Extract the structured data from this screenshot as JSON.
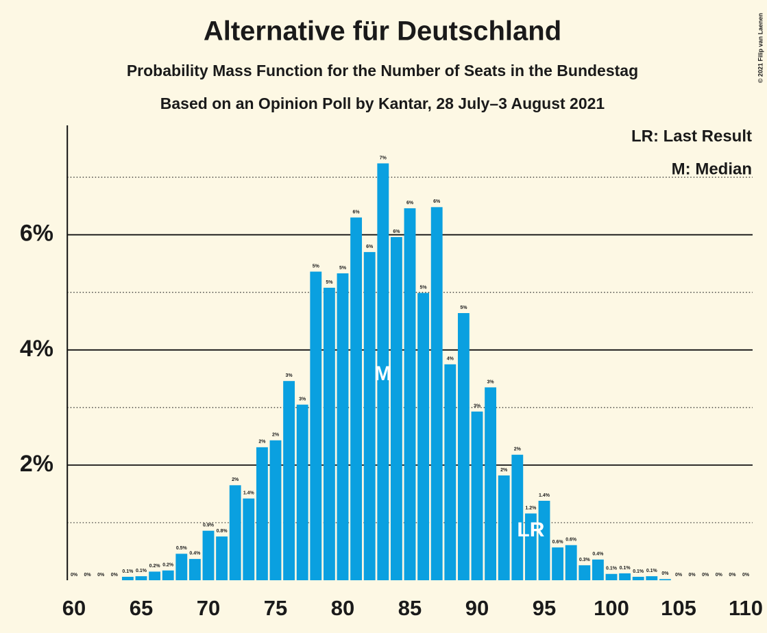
{
  "chart_data": {
    "type": "bar",
    "title": "Alternative für Deutschland",
    "subtitle": "Probability Mass Function for the Number of Seats in the Bundestag",
    "subtitle2": "Based on an Opinion Poll by Kantar, 28 July–3 August 2021",
    "copyright": "© 2021 Filip van Laenen",
    "legend": [
      "LR: Last Result",
      "M: Median"
    ],
    "color": "#0aa0e0",
    "x": [
      60,
      61,
      62,
      63,
      64,
      65,
      66,
      67,
      68,
      69,
      70,
      71,
      72,
      73,
      74,
      75,
      76,
      77,
      78,
      79,
      80,
      81,
      82,
      83,
      84,
      85,
      86,
      87,
      88,
      89,
      90,
      91,
      92,
      93,
      94,
      95,
      96,
      97,
      98,
      99,
      100,
      101,
      102,
      103,
      104,
      105,
      106,
      107,
      108,
      109,
      110
    ],
    "values": [
      0,
      0,
      0,
      0,
      0.06,
      0.07,
      0.15,
      0.17,
      0.46,
      0.37,
      0.86,
      0.76,
      1.65,
      1.42,
      2.31,
      2.43,
      3.46,
      3.05,
      5.36,
      5.08,
      5.33,
      6.3,
      5.7,
      7.24,
      5.96,
      6.46,
      4.99,
      6.48,
      3.75,
      4.64,
      2.93,
      3.35,
      1.82,
      2.18,
      1.16,
      1.38,
      0.57,
      0.61,
      0.26,
      0.36,
      0.11,
      0.12,
      0.06,
      0.07,
      0.02,
      0,
      0,
      0,
      0,
      0,
      0
    ],
    "value_labels": [
      "0%",
      "0%",
      "0%",
      "0%",
      "0.1%",
      "0.1%",
      "0.2%",
      "0.2%",
      "0.5%",
      "0.4%",
      "0.9%",
      "0.8%",
      "2%",
      "1.4%",
      "2%",
      "2%",
      "3%",
      "3%",
      "5%",
      "5%",
      "5%",
      "6%",
      "6%",
      "7%",
      "6%",
      "6%",
      "5%",
      "6%",
      "4%",
      "5%",
      "3%",
      "3%",
      "2%",
      "2%",
      "1.2%",
      "1.4%",
      "0.6%",
      "0.6%",
      "0.3%",
      "0.4%",
      "0.1%",
      "0.1%",
      "0.1%",
      "0.1%",
      "0%",
      "0%",
      "0%",
      "0%",
      "0%",
      "0%",
      "0%"
    ],
    "annotations": [
      {
        "text": "M",
        "x": 83
      },
      {
        "text": "LR",
        "x": 94
      }
    ],
    "xlim": [
      60,
      110
    ],
    "xticks": [
      60,
      65,
      70,
      75,
      80,
      85,
      90,
      95,
      100,
      105,
      110
    ],
    "ylim": [
      0,
      7.9
    ],
    "yticks": [
      {
        "value": 2,
        "label": "2%"
      },
      {
        "value": 4,
        "label": "4%"
      },
      {
        "value": 6,
        "label": "6%"
      }
    ],
    "minor_gridlines": [
      1,
      3,
      5,
      7
    ]
  }
}
